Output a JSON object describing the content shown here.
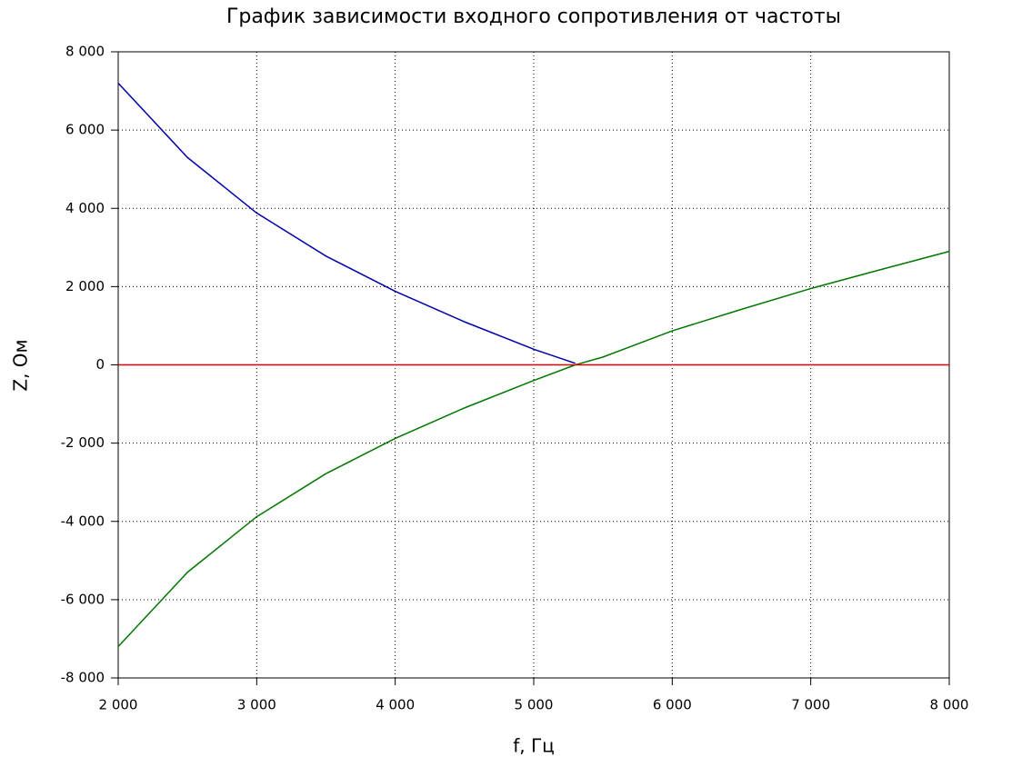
{
  "chart_data": {
    "type": "line",
    "title": "График зависимости входного сопротивления от частоты",
    "x_label": "f, Гц",
    "y_label": "Z, Ом",
    "x": [
      2000,
      2500,
      3000,
      3500,
      4000,
      4500,
      5000,
      5300,
      5500,
      6000,
      6500,
      7000,
      7500,
      8000
    ],
    "series": [
      {
        "color": "#0000aa",
        "values": [
          7200,
          5300,
          3880,
          2780,
          1880,
          1100,
          400,
          40,
          null,
          null,
          null,
          null,
          null,
          null
        ]
      },
      {
        "color": "#007700",
        "values": [
          -7200,
          -5300,
          -3880,
          -2780,
          -1880,
          -1100,
          -400,
          0,
          200,
          870,
          1420,
          1950,
          2430,
          2900
        ]
      },
      {
        "color": "#dd0000",
        "values": [
          0,
          0,
          0,
          0,
          0,
          0,
          0,
          0,
          0,
          0,
          0,
          0,
          0,
          0
        ]
      }
    ],
    "xlim": [
      2000,
      8000
    ],
    "ylim": [
      -8000,
      8000
    ],
    "xticks": [
      {
        "value": 2000,
        "label": "2 000"
      },
      {
        "value": 3000,
        "label": "3 000"
      },
      {
        "value": 4000,
        "label": "4 000"
      },
      {
        "value": 5000,
        "label": "5 000"
      },
      {
        "value": 6000,
        "label": "6 000"
      },
      {
        "value": 7000,
        "label": "7 000"
      },
      {
        "value": 8000,
        "label": "8 000"
      }
    ],
    "yticks": [
      {
        "value": -8000,
        "label": "-8 000"
      },
      {
        "value": -6000,
        "label": "-6 000"
      },
      {
        "value": -4000,
        "label": "-4 000"
      },
      {
        "value": -2000,
        "label": "-2 000"
      },
      0,
      {
        "value": 2000,
        "label": "2 000"
      },
      {
        "value": 4000,
        "label": "4 000"
      },
      {
        "value": 6000,
        "label": "6 000"
      },
      {
        "value": 8000,
        "label": "8 000"
      }
    ],
    "grid": true
  }
}
